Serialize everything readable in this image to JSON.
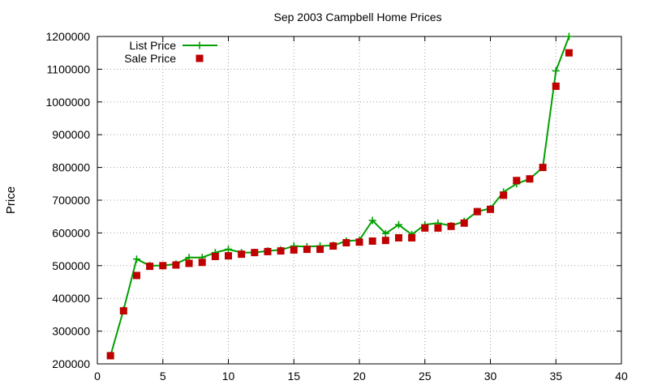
{
  "chart_data": {
    "type": "line",
    "title": "Sep 2003 Campbell Home Prices",
    "xlabel": "",
    "ylabel": "Price",
    "xlim": [
      0,
      40
    ],
    "ylim": [
      200000,
      1200000
    ],
    "xticks": [
      0,
      5,
      10,
      15,
      20,
      25,
      30,
      35,
      40
    ],
    "yticks": [
      200000,
      300000,
      400000,
      500000,
      600000,
      700000,
      800000,
      900000,
      1000000,
      1100000,
      1200000
    ],
    "grid": true,
    "legend_position": "top-left",
    "x": [
      1,
      2,
      3,
      4,
      5,
      6,
      7,
      8,
      9,
      10,
      11,
      12,
      13,
      14,
      15,
      16,
      17,
      18,
      19,
      20,
      21,
      22,
      23,
      24,
      25,
      26,
      27,
      28,
      29,
      30,
      31,
      32,
      33,
      34,
      35,
      36
    ],
    "series": [
      {
        "name": "List Price",
        "style": "line-plus",
        "color": "#00a000",
        "values": [
          225000,
          365000,
          520000,
          500000,
          500000,
          505000,
          525000,
          525000,
          540000,
          550000,
          540000,
          540000,
          545000,
          548000,
          560000,
          558000,
          560000,
          562000,
          575000,
          578000,
          638000,
          598000,
          625000,
          595000,
          625000,
          630000,
          622000,
          635000,
          665000,
          675000,
          725000,
          750000,
          765000,
          800000,
          1095000,
          1200000
        ]
      },
      {
        "name": "Sale Price",
        "style": "square-points",
        "color": "#c00000",
        "values": [
          225000,
          362000,
          470000,
          498000,
          500000,
          502000,
          507000,
          510000,
          528000,
          530000,
          535000,
          540000,
          543000,
          545000,
          548000,
          550000,
          550000,
          560000,
          570000,
          572000,
          575000,
          577000,
          585000,
          585000,
          615000,
          615000,
          620000,
          630000,
          665000,
          672000,
          715000,
          760000,
          765000,
          800000,
          1048000,
          1150000
        ]
      }
    ]
  }
}
